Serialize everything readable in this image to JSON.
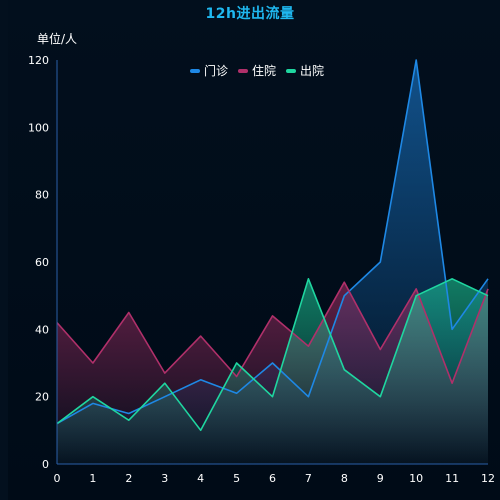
{
  "chart_data": {
    "type": "area",
    "title": "12h进出流量",
    "ylabel": "单位/人",
    "xlabel": "",
    "x": [
      0,
      1,
      2,
      3,
      4,
      5,
      6,
      7,
      8,
      9,
      10,
      11,
      12
    ],
    "ylim": [
      0,
      120
    ],
    "yticks": [
      0,
      20,
      40,
      60,
      80,
      100,
      120
    ],
    "grid": false,
    "legend_position": "top-center",
    "series": [
      {
        "name": "门诊",
        "color": "#1e88e5",
        "values": [
          12,
          18,
          15,
          20,
          25,
          21,
          30,
          20,
          50,
          60,
          120,
          40,
          55
        ]
      },
      {
        "name": "住院",
        "color": "#b0306a",
        "values": [
          42,
          30,
          45,
          27,
          38,
          26,
          44,
          35,
          54,
          34,
          52,
          24,
          52
        ]
      },
      {
        "name": "出院",
        "color": "#1fd6a0",
        "values": [
          12,
          20,
          13,
          24,
          10,
          30,
          20,
          55,
          28,
          20,
          50,
          55,
          50
        ]
      }
    ]
  }
}
